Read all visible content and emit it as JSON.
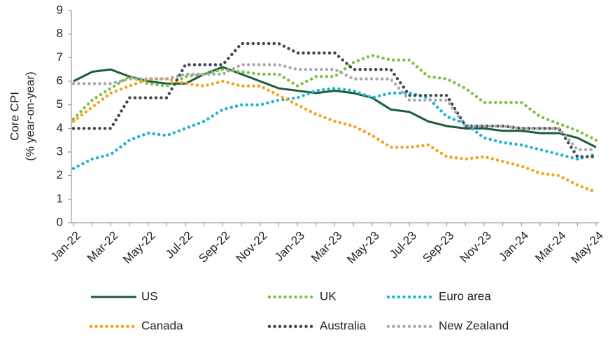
{
  "chart_data": {
    "type": "line",
    "y_label": [
      "Core CPI",
      "(% year-on-year)"
    ],
    "categories": [
      "Jan-22",
      null,
      "Mar-22",
      null,
      "May-22",
      null,
      "Jul-22",
      null,
      "Sep-22",
      null,
      "Nov-22",
      null,
      "Jan-23",
      null,
      "Mar-23",
      null,
      "May-23",
      null,
      "Jul-23",
      null,
      "Sep-23",
      null,
      "Nov-23",
      null,
      "Jan-24",
      null,
      "Mar-24",
      null,
      "May-24"
    ],
    "ylim": [
      0,
      9
    ],
    "yticks": [
      0,
      1,
      2,
      3,
      4,
      5,
      6,
      7,
      8,
      9
    ],
    "grid": false,
    "legend": "bottom",
    "series": [
      {
        "name": "US",
        "color": "#1e5c3a",
        "style": "solid",
        "values": [
          6.0,
          6.4,
          6.5,
          6.2,
          6.0,
          5.9,
          5.9,
          6.3,
          6.6,
          6.3,
          6.0,
          5.7,
          5.6,
          5.5,
          5.6,
          5.5,
          5.3,
          4.8,
          4.7,
          4.3,
          4.1,
          4.0,
          4.0,
          3.9,
          3.9,
          3.8,
          3.8,
          3.6,
          3.2
        ]
      },
      {
        "name": "UK",
        "color": "#7dc242",
        "style": "dotted",
        "values": [
          4.4,
          5.2,
          5.7,
          6.2,
          5.9,
          5.8,
          6.2,
          6.3,
          6.5,
          6.4,
          6.3,
          6.3,
          5.8,
          6.2,
          6.2,
          6.8,
          7.1,
          6.9,
          6.9,
          6.2,
          6.1,
          5.7,
          5.1,
          5.1,
          5.1,
          4.5,
          4.2,
          3.9,
          3.5
        ]
      },
      {
        "name": "Euro area",
        "color": "#1fb5d0",
        "style": "dotted",
        "values": [
          2.3,
          2.7,
          2.9,
          3.5,
          3.8,
          3.7,
          4.0,
          4.3,
          4.8,
          5.0,
          5.0,
          5.2,
          5.3,
          5.6,
          5.7,
          5.6,
          5.3,
          5.5,
          5.5,
          5.3,
          4.5,
          4.2,
          3.6,
          3.4,
          3.3,
          3.1,
          2.9,
          2.7,
          2.9
        ]
      },
      {
        "name": "Canada",
        "color": "#f7a21b",
        "style": "dotted",
        "values": [
          4.3,
          4.9,
          5.5,
          5.8,
          6.1,
          6.1,
          5.9,
          5.8,
          6.0,
          5.8,
          5.8,
          5.4,
          5.0,
          4.6,
          4.3,
          4.1,
          3.7,
          3.2,
          3.2,
          3.3,
          2.8,
          2.7,
          2.8,
          2.6,
          2.4,
          2.1,
          2.0,
          1.6,
          1.3
        ]
      },
      {
        "name": "Australia",
        "color": "#3b4a55",
        "style": "dotted",
        "values": [
          4.0,
          4.0,
          4.0,
          5.3,
          5.3,
          5.3,
          6.7,
          6.7,
          6.7,
          7.6,
          7.6,
          7.6,
          7.2,
          7.2,
          7.2,
          6.5,
          6.5,
          6.5,
          5.4,
          5.4,
          5.4,
          4.1,
          4.1,
          4.1,
          4.0,
          4.0,
          4.0,
          2.8,
          2.8
        ]
      },
      {
        "name": "New Zealand",
        "color": "#a7a9ac",
        "style": "dotted",
        "values": [
          5.9,
          5.9,
          5.9,
          6.1,
          6.1,
          6.1,
          6.3,
          6.3,
          6.3,
          6.7,
          6.7,
          6.7,
          6.5,
          6.5,
          6.5,
          6.1,
          6.1,
          6.1,
          5.2,
          5.2,
          5.2,
          4.1,
          4.1,
          4.1,
          4.0,
          4.0,
          4.0,
          3.1,
          3.1
        ]
      }
    ]
  }
}
